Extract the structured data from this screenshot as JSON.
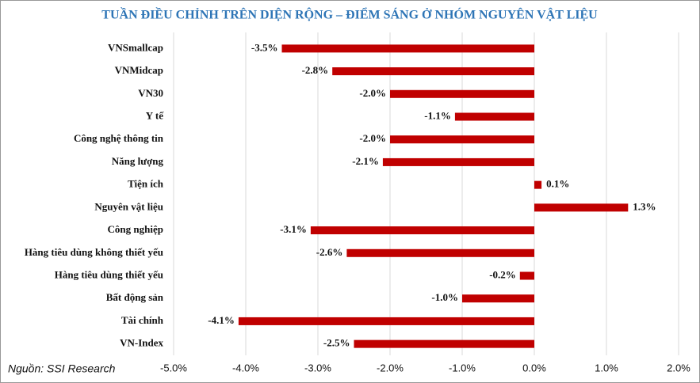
{
  "chart_data": {
    "type": "bar",
    "orientation": "horizontal",
    "title": "TUẦN ĐIỀU CHỈNH TRÊN DIỆN RỘNG – ĐIỂM SÁNG Ở NHÓM NGUYÊN VẬT LIỆU",
    "source": "Nguồn: SSI Research",
    "categories": [
      "VNSmallcap",
      "VNMidcap",
      "VN30",
      "Y tế",
      "Công nghệ thông tin",
      "Năng lượng",
      "Tiện ích",
      "Nguyên vật liệu",
      "Công nghiệp",
      "Hàng tiêu dùng không thiết yếu",
      "Hàng tiêu dùng thiết yếu",
      "Bất động sản",
      "Tài chính",
      "VN-Index"
    ],
    "values": [
      -3.5,
      -2.8,
      -2.0,
      -1.1,
      -2.0,
      -2.1,
      0.1,
      1.3,
      -3.1,
      -2.6,
      -0.2,
      -1.0,
      -4.1,
      -2.5
    ],
    "value_labels": [
      "-3.5%",
      "-2.8%",
      "-2.0%",
      "-1.1%",
      "-2.0%",
      "-2.1%",
      "0.1%",
      "1.3%",
      "-3.1%",
      "-2.6%",
      "-0.2%",
      "-1.0%",
      "-4.1%",
      "-2.5%"
    ],
    "color": "#c00000",
    "xlim": [
      -5,
      2
    ],
    "xticks": [
      {
        "value": -5,
        "label": "-5.0%"
      },
      {
        "value": -4,
        "label": "-4.0%"
      },
      {
        "value": -3,
        "label": "-3.0%"
      },
      {
        "value": -2,
        "label": "-2.0%"
      },
      {
        "value": -1,
        "label": "-1.0%"
      },
      {
        "value": 0,
        "label": "0.0%"
      },
      {
        "value": 1,
        "label": "1.0%"
      },
      {
        "value": 2,
        "label": "2.0%"
      }
    ],
    "grid": true
  }
}
